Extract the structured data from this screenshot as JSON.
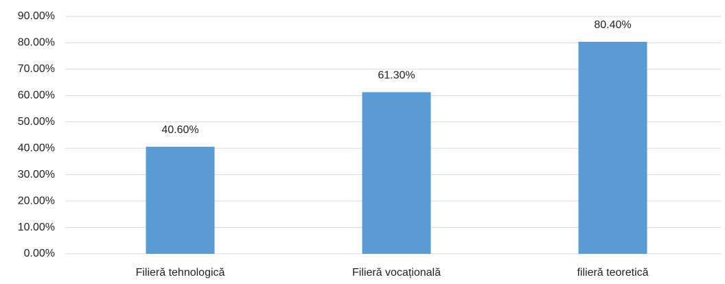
{
  "chart_data": {
    "type": "bar",
    "categories": [
      "Filieră tehnologică",
      "Filieră vocațională",
      "filieră teoretică"
    ],
    "values": [
      40.6,
      61.3,
      80.4
    ],
    "value_labels": [
      "40.60%",
      "61.30%",
      "80.40%"
    ],
    "color": "#5b9bd5",
    "ylim": [
      0,
      90
    ],
    "yticks": [
      {
        "value": 0,
        "label": "0.00%"
      },
      {
        "value": 10,
        "label": "10.00%"
      },
      {
        "value": 20,
        "label": "20.00%"
      },
      {
        "value": 30,
        "label": "30.00%"
      },
      {
        "value": 40,
        "label": "40.00%"
      },
      {
        "value": 50,
        "label": "50.00%"
      },
      {
        "value": 60,
        "label": "60.00%"
      },
      {
        "value": 70,
        "label": "70.00%"
      },
      {
        "value": 80,
        "label": "80.00%"
      },
      {
        "value": 90,
        "label": "90.00%"
      }
    ],
    "grid": true
  }
}
